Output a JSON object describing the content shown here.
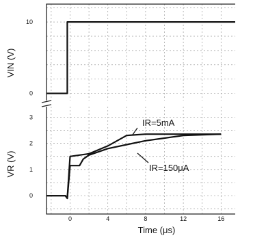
{
  "chart_data": [
    {
      "type": "line",
      "ylabel": "VIN (V)",
      "xlabel": "",
      "xlim": [
        -2.5,
        17.5
      ],
      "ylim": [
        -1,
        12.5
      ],
      "yticks": [
        "0",
        "10"
      ],
      "grid": true,
      "series": [
        {
          "x": [
            -2.5,
            -0.3,
            -0.3,
            17.5
          ],
          "y": [
            0,
            0,
            10,
            10
          ]
        }
      ]
    },
    {
      "type": "line",
      "xlabel": "Time (μs)",
      "ylabel": "VR (V)",
      "xlim": [
        -2.5,
        17.5
      ],
      "ylim": [
        -0.7,
        3.4
      ],
      "xticks": [
        "0",
        "4",
        "8",
        "12",
        "16"
      ],
      "yticks": [
        "0",
        "1",
        "2",
        "3"
      ],
      "grid": true,
      "series": [
        {
          "name": "IR=5mA",
          "x": [
            -2.5,
            -0.5,
            -0.3,
            0,
            1,
            2,
            4,
            6,
            8,
            10,
            12,
            16
          ],
          "y": [
            0,
            0,
            -0.1,
            1.5,
            1.55,
            1.6,
            1.9,
            2.3,
            2.35,
            2.35,
            2.35,
            2.35
          ]
        },
        {
          "name": "IR=150μA",
          "x": [
            -2.5,
            -0.5,
            -0.3,
            0,
            1,
            1.4,
            2,
            4,
            6,
            8,
            10,
            12,
            16
          ],
          "y": [
            0,
            0,
            -0.1,
            1.15,
            1.15,
            1.4,
            1.55,
            1.8,
            1.95,
            2.1,
            2.2,
            2.3,
            2.35
          ]
        }
      ],
      "annotations": [
        "IR=5mA",
        "IR=150μA"
      ]
    }
  ]
}
